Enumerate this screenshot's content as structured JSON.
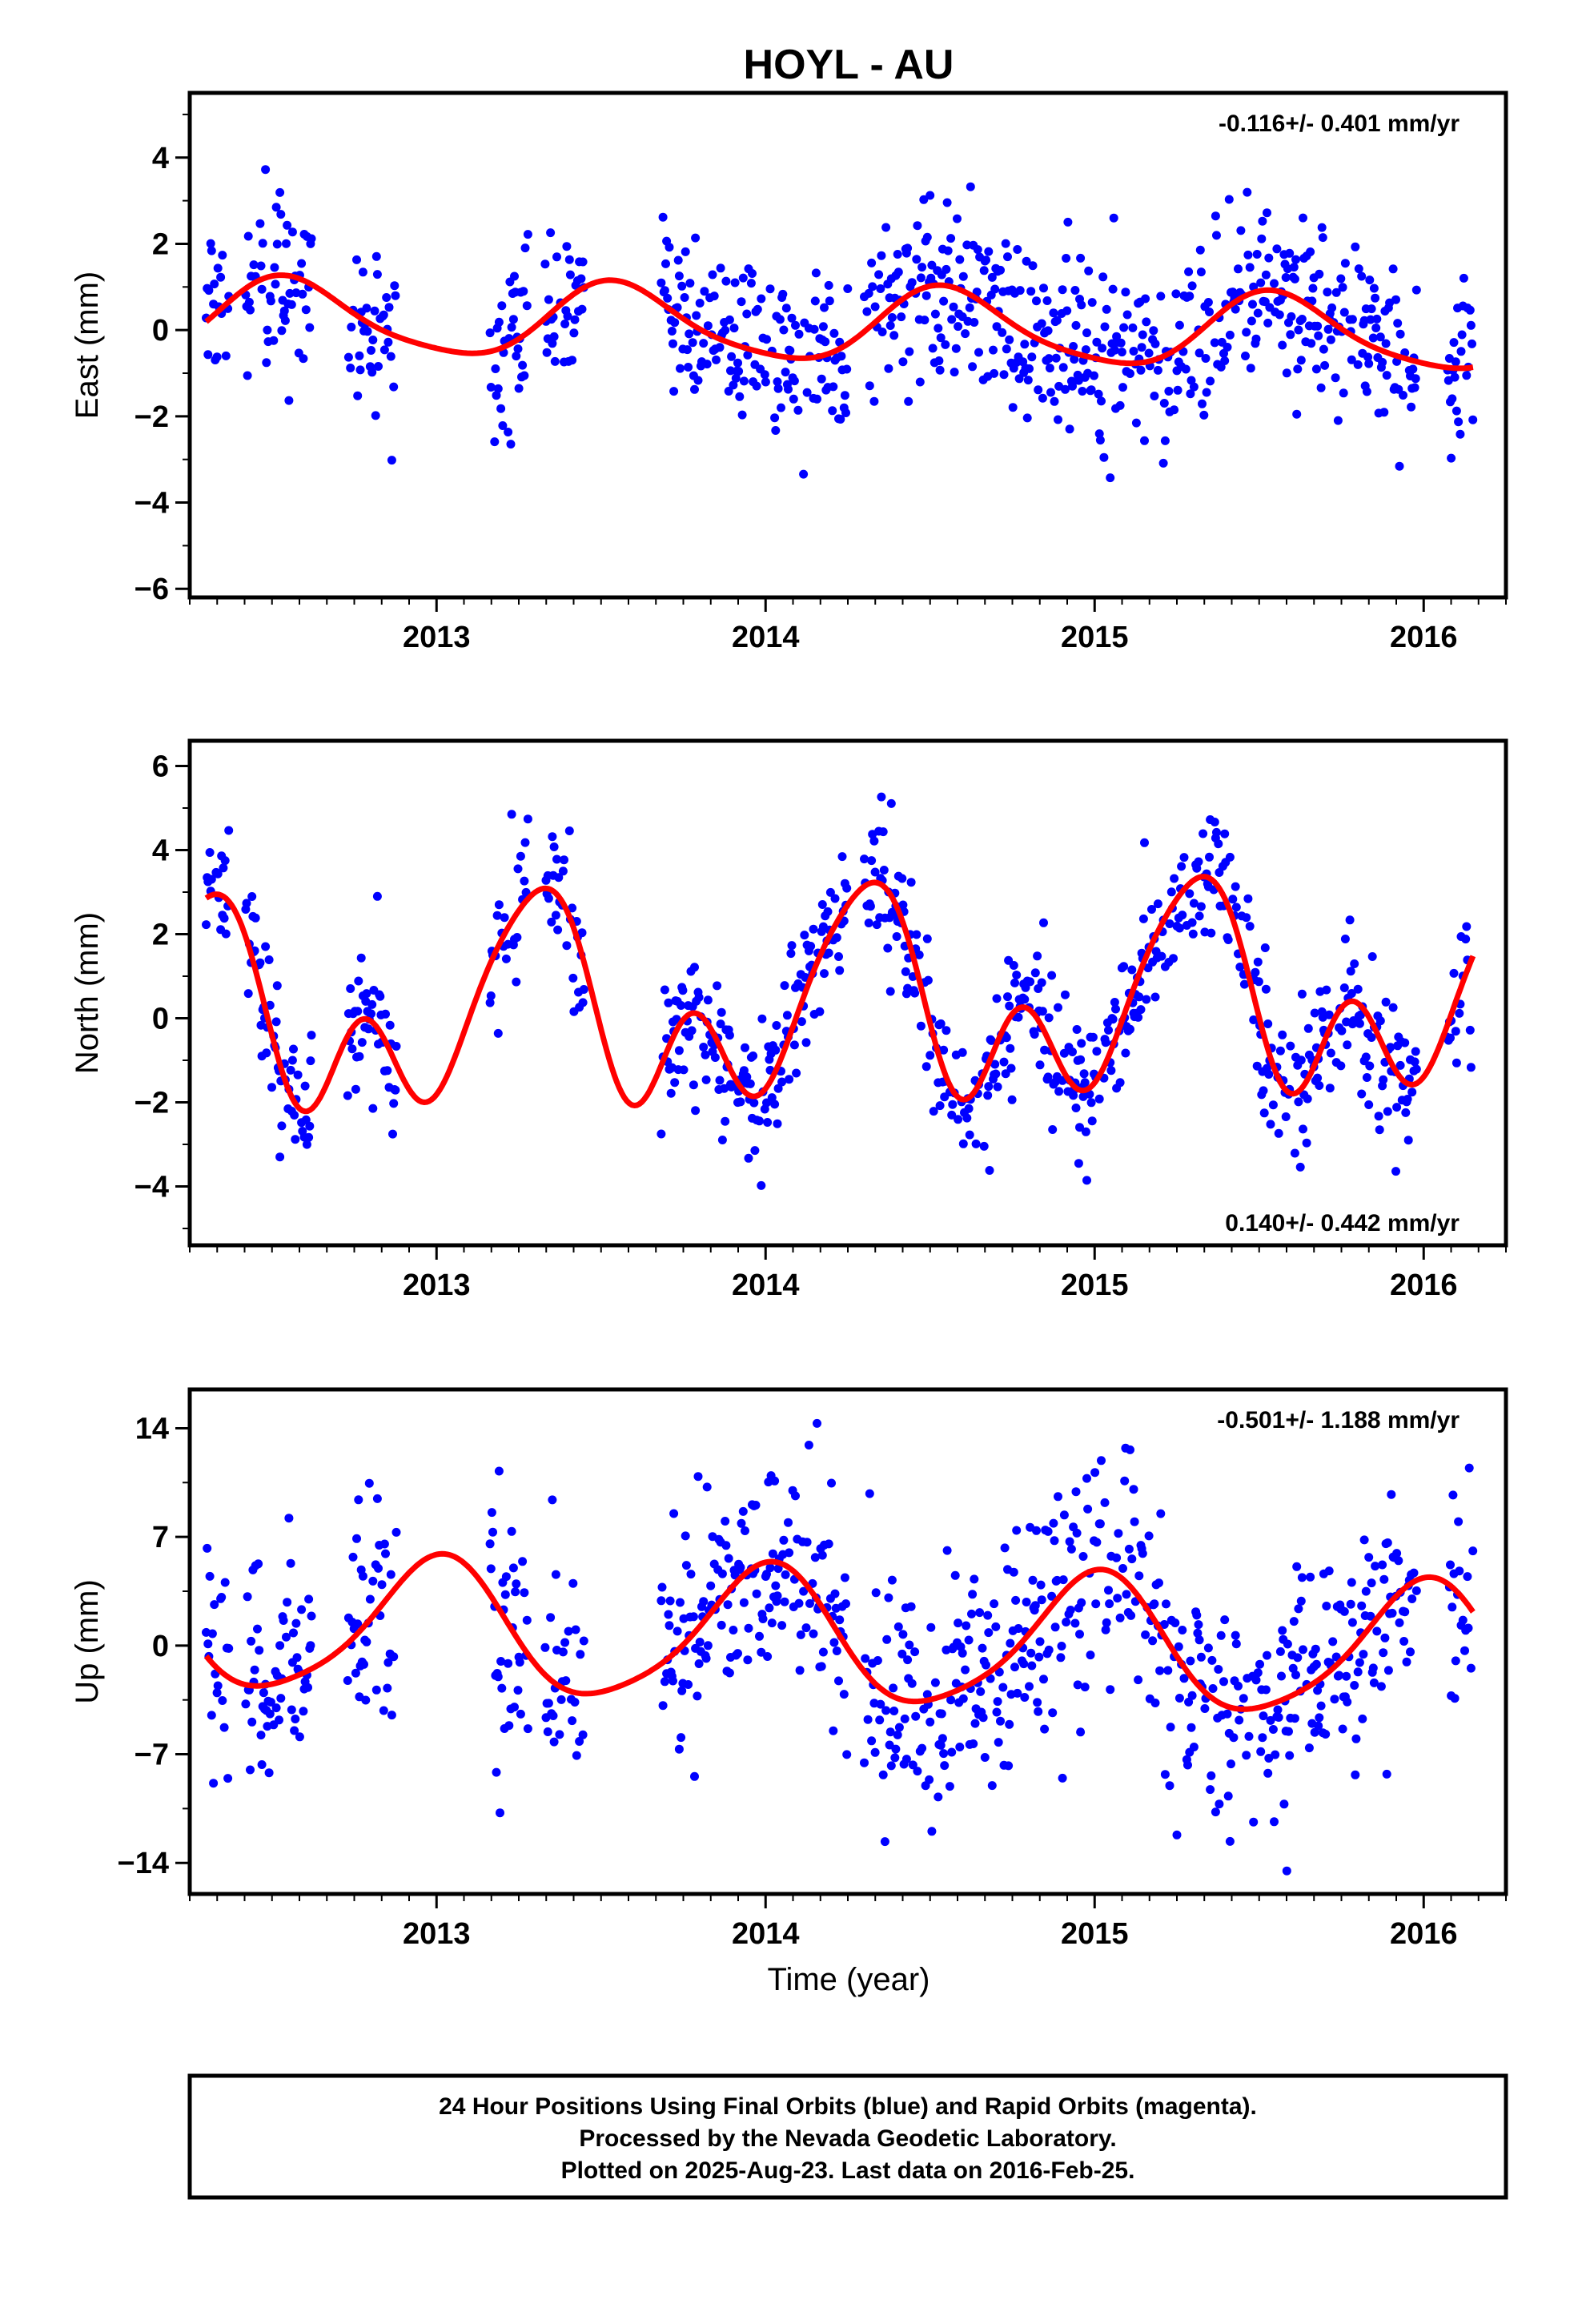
{
  "title": "HOYL - AU",
  "colors": {
    "final_orbits": "#0000ff",
    "fit_curve": "#ff0000",
    "frame": "#000000"
  },
  "xlabel": "Time (year)",
  "footer": {
    "line1": "24 Hour Positions Using Final Orbits (blue) and Rapid Orbits (magenta).",
    "line2": "Processed by the Nevada Geodetic Laboratory.",
    "line3": "Plotted on 2025-Aug-23. Last data on 2016-Feb-25."
  },
  "chart_data": [
    {
      "type": "scatter",
      "ylabel": "East (mm)",
      "rate": "-0.116+/- 0.401 mm/yr",
      "rate_position": "top-right",
      "xlim": [
        2012.25,
        2016.25
      ],
      "ylim": [
        -6.2,
        5.5
      ],
      "xticks": [
        2013,
        2014,
        2015,
        2016
      ],
      "yticks": [
        -6,
        -4,
        -2,
        0,
        2,
        4
      ],
      "fit": {
        "offset": 0.12,
        "trend": -0.116,
        "ref_year": 2014.0,
        "a1": 0.85,
        "p1": 0.55,
        "a2": 0.15,
        "p2": 0.0,
        "a3": 0.0,
        "p3": 0.0
      },
      "noise_sd": 1.0,
      "gaps": [
        [
          2012.98,
          2013.02
        ],
        [
          2013.08,
          2013.15
        ],
        [
          2013.58,
          2013.62
        ],
        [
          2013.62,
          2013.68
        ],
        [
          2016.05,
          2016.06
        ]
      ],
      "series": [
        {
          "name": "Final Orbits",
          "segments": [
            [
              2012.3,
              2012.37
            ],
            [
              2012.42,
              2012.62
            ],
            [
              2012.73,
              2012.88
            ],
            [
              2013.16,
              2013.28
            ],
            [
              2013.33,
              2013.45
            ],
            [
              2013.68,
              2014.25
            ],
            [
              2014.3,
              2015.98
            ],
            [
              2016.07,
              2016.15
            ]
          ]
        }
      ]
    },
    {
      "type": "scatter",
      "ylabel": "North (mm)",
      "rate": "0.140+/- 0.442 mm/yr",
      "rate_position": "bottom-right",
      "xlim": [
        2012.25,
        2016.25
      ],
      "ylim": [
        -5.4,
        6.6
      ],
      "xticks": [
        2013,
        2014,
        2015,
        2016
      ],
      "yticks": [
        -4,
        -2,
        0,
        2,
        4,
        6
      ],
      "fit": {
        "offset": 0.2,
        "trend": 0.14,
        "ref_year": 2014.0,
        "a1": 1.9,
        "p1": 0.3,
        "a2": 1.4,
        "p2": 0.3,
        "a3": 0.5,
        "p3": 0.1
      },
      "noise_sd": 0.9,
      "gaps": [
        [
          2012.98,
          2013.02
        ],
        [
          2013.08,
          2013.15
        ],
        [
          2013.58,
          2013.62
        ],
        [
          2013.62,
          2013.68
        ],
        [
          2016.05,
          2016.06
        ]
      ],
      "series": [
        {
          "name": "Final Orbits",
          "segments": [
            [
              2012.3,
              2012.37
            ],
            [
              2012.42,
              2012.62
            ],
            [
              2012.73,
              2012.88
            ],
            [
              2013.16,
              2013.28
            ],
            [
              2013.33,
              2013.45
            ],
            [
              2013.68,
              2014.25
            ],
            [
              2014.3,
              2015.98
            ],
            [
              2016.07,
              2016.15
            ]
          ]
        }
      ]
    },
    {
      "type": "scatter",
      "ylabel": "Up (mm)",
      "rate": "-0.501+/- 1.188 mm/yr",
      "rate_position": "top-right",
      "xlim": [
        2012.25,
        2016.25
      ],
      "ylim": [
        -16,
        16.5
      ],
      "xticks": [
        2013,
        2014,
        2015,
        2016
      ],
      "yticks": [
        -14,
        -7,
        0,
        7,
        14
      ],
      "fit": {
        "offset": 0.5,
        "trend": -0.501,
        "ref_year": 2014.0,
        "a1": 4.3,
        "p1": 0.0,
        "a2": 0.7,
        "p2": 0.05,
        "a3": 0.0,
        "p3": 0.0
      },
      "noise_sd": 3.6,
      "gaps": [
        [
          2012.98,
          2013.02
        ],
        [
          2013.08,
          2013.15
        ],
        [
          2013.58,
          2013.62
        ],
        [
          2013.62,
          2013.68
        ],
        [
          2016.05,
          2016.06
        ]
      ],
      "series": [
        {
          "name": "Final Orbits",
          "segments": [
            [
              2012.3,
              2012.37
            ],
            [
              2012.42,
              2012.62
            ],
            [
              2012.73,
              2012.88
            ],
            [
              2013.16,
              2013.28
            ],
            [
              2013.33,
              2013.45
            ],
            [
              2013.68,
              2014.25
            ],
            [
              2014.3,
              2015.98
            ],
            [
              2016.07,
              2016.15
            ]
          ]
        }
      ]
    }
  ]
}
